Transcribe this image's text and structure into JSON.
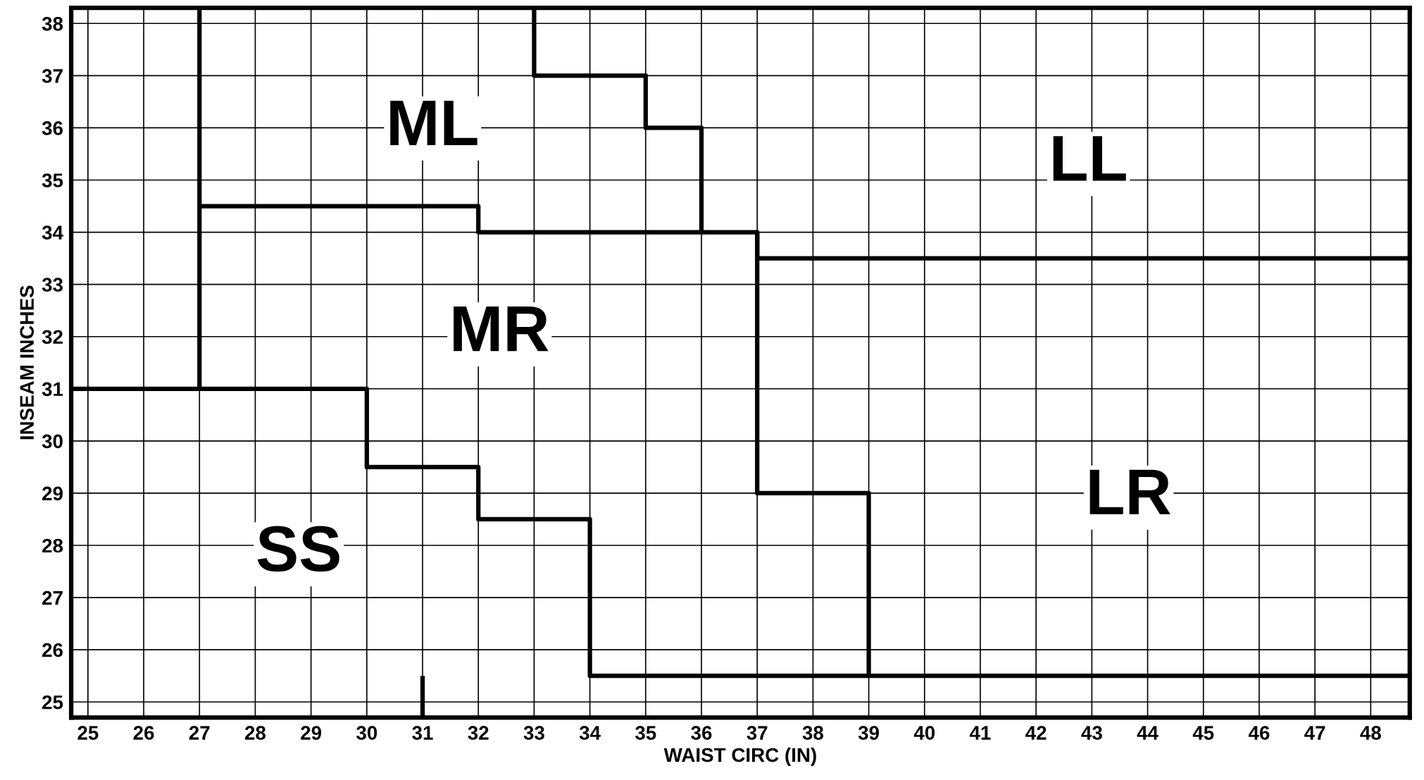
{
  "chart_data": {
    "type": "line",
    "xlabel": "WAIST CIRC (IN)",
    "ylabel": "INSEAM INCHES",
    "series": [
      {
        "color": "#000000",
        "x": [
          24.7,
          30,
          30,
          32,
          32,
          34,
          34,
          48.7
        ],
        "values": [
          31,
          31,
          29.5,
          29.5,
          28.5,
          28.5,
          25.5,
          25.5
        ]
      },
      {
        "color": "#000000",
        "x": [
          31,
          31
        ],
        "values": [
          24.7,
          25.5
        ]
      },
      {
        "color": "#000000",
        "x": [
          27,
          27
        ],
        "values": [
          31,
          38.3
        ]
      },
      {
        "color": "#000000",
        "x": [
          27,
          32,
          32,
          37,
          37,
          48.7
        ],
        "values": [
          34.5,
          34.5,
          34,
          34,
          33.5,
          33.5
        ]
      },
      {
        "color": "#000000",
        "x": [
          33,
          33,
          35,
          35,
          36,
          36
        ],
        "values": [
          38.3,
          37,
          37,
          36,
          36,
          34
        ]
      },
      {
        "color": "#000000",
        "x": [
          37,
          37,
          39,
          39
        ],
        "values": [
          34,
          29,
          29,
          25.5
        ]
      }
    ],
    "annotations": [
      "ML",
      "MR",
      "LL",
      "LR",
      "SS"
    ],
    "xlim": [
      24.7,
      48.7
    ],
    "ylim": [
      24.7,
      38.3
    ],
    "xticks": [
      25,
      26,
      27,
      28,
      29,
      30,
      31,
      32,
      33,
      34,
      35,
      36,
      37,
      38,
      39,
      40,
      41,
      42,
      43,
      44,
      45,
      46,
      47,
      48
    ],
    "yticks": [
      25,
      26,
      27,
      28,
      29,
      30,
      31,
      32,
      33,
      34,
      35,
      36,
      37,
      38
    ],
    "grid": true,
    "line_style": "solid",
    "marker": "none"
  }
}
